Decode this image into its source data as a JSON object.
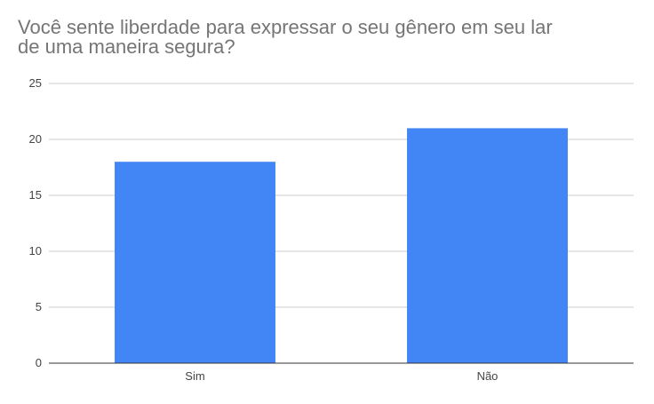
{
  "chart_data": {
    "type": "bar",
    "title": [
      "Você sente liberdade para expressar o seu gênero em seu lar",
      "de uma maneira segura?"
    ],
    "categories": [
      "Sim",
      "Não"
    ],
    "values": [
      18,
      21
    ],
    "ylim": [
      0,
      25
    ],
    "yticks": [
      "0",
      "5",
      "10",
      "15",
      "20",
      "25"
    ],
    "grid": true,
    "legend": "none",
    "colors": {
      "bar": "#4285f4",
      "grid": "#cccccc",
      "axis": "#333333",
      "title": "#757575"
    }
  }
}
